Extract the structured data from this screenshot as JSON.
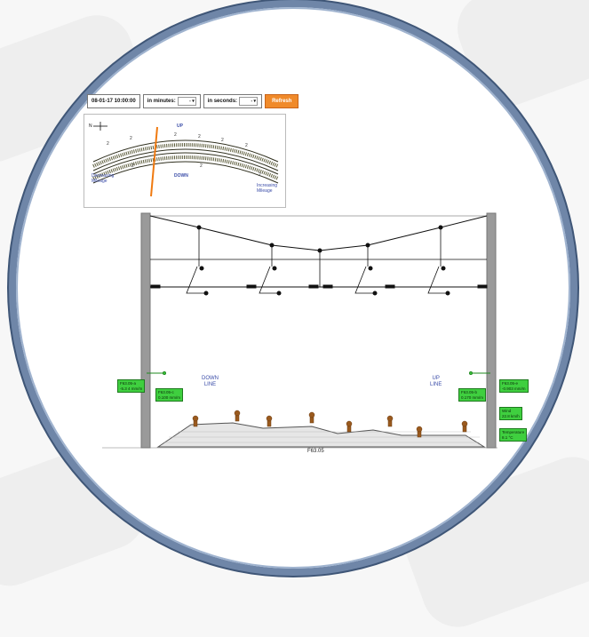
{
  "toolbar": {
    "datetime": "08-01-17 10:00:00",
    "minutes_label": "in minutes:",
    "minutes_value": "-",
    "seconds_label": "in seconds:",
    "seconds_value": "-",
    "refresh_label": "Refresh"
  },
  "track_panel": {
    "north_label": "N",
    "up_label": "UP",
    "down_label": "DOWN",
    "left_note_1": "Decreasing",
    "left_note_2": "Mileage",
    "right_note_1": "Increasing",
    "right_note_2": "Mileage",
    "sensor_marks": [
      "2",
      "2",
      "2",
      "2",
      "2",
      "2",
      "2",
      "2",
      "2"
    ]
  },
  "cross_section": {
    "down_line_1": "DOWN",
    "down_line_2": "LINE",
    "up_line_1": "UP",
    "up_line_2": "LINE",
    "section_id": "F63.05",
    "sensors": {
      "left_1": "F63.05-a\n-5.3 4 mm/m",
      "left_2": "F63.05-c\n0.100 mm/m",
      "right_1": "F63.05-e\n-0.903 mm/m",
      "right_2": "F63.05-b\n0.170 mm/m",
      "right_3": "Wind\n22.8 km/h",
      "right_4": "Temperature\n8.1 °C"
    }
  },
  "colors": {
    "frame": "#6f86a8",
    "sensor": "#3fcf3f",
    "refresh": "#f08a2a",
    "mast": "#9a9a9a",
    "marker": "#f07a10"
  }
}
